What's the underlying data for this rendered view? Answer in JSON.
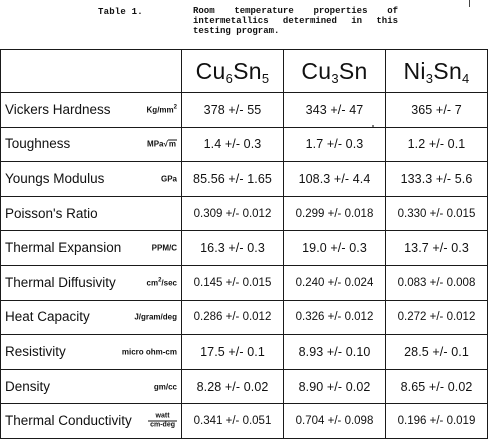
{
  "caption": {
    "label": "Table 1.",
    "text": "Room temperature properties of intermetallics determined in this testing program."
  },
  "columns": [
    {
      "base1": "Cu",
      "sub1": "6",
      "base2": "Sn",
      "sub2": "5"
    },
    {
      "base1": "Cu",
      "sub1": "3",
      "base2": "Sn",
      "sub2": ""
    },
    {
      "base1": "Ni",
      "sub1": "3",
      "base2": "Sn",
      "sub2": "4"
    }
  ],
  "rows": [
    {
      "property": "Vickers Hardness",
      "unit": "Kg/mm",
      "unit_sup": "2",
      "values": [
        "378 +/- 55",
        "343 +/- 47",
        "365 +/- 7"
      ]
    },
    {
      "property": "Toughness",
      "unit": "MPa",
      "unit_root": "m",
      "values": [
        "1.4 +/- 0.3",
        "1.7 +/- 0.3",
        "1.2 +/- 0.1"
      ]
    },
    {
      "property": "Youngs Modulus",
      "unit": "GPa",
      "values": [
        "85.56 +/- 1.65",
        "108.3 +/- 4.4",
        "133.3 +/- 5.6"
      ]
    },
    {
      "property": "Poisson's Ratio",
      "unit": "",
      "values": [
        "0.309 +/- 0.012",
        "0.299 +/- 0.018",
        "0.330 +/- 0.015"
      ]
    },
    {
      "property": "Thermal Expansion",
      "unit": "PPM/C",
      "values": [
        "16.3 +/- 0.3",
        "19.0 +/- 0.3",
        "13.7 +/- 0.3"
      ]
    },
    {
      "property": "Thermal Diffusivity",
      "unit": "cm",
      "unit_sup": "2",
      "unit_after": "/sec",
      "values": [
        "0.145 +/- 0.015",
        "0.240 +/- 0.024",
        "0.083 +/- 0.008"
      ]
    },
    {
      "property": "Heat Capacity",
      "unit": "J/gram/deg",
      "values": [
        "0.286 +/- 0.012",
        "0.326 +/- 0.012",
        "0.272 +/- 0.012"
      ]
    },
    {
      "property": "Resistivity",
      "unit": "micro ohm-cm",
      "values": [
        "17.5 +/- 0.1",
        "8.93 +/- 0.10",
        "28.5 +/- 0.1"
      ]
    },
    {
      "property": "Density",
      "unit": "gm/cc",
      "values": [
        "8.28 +/- 0.02",
        "8.90 +/- 0.02",
        "8.65 +/- 0.02"
      ]
    },
    {
      "property": "Thermal Conductivity",
      "unit_num": "watt",
      "unit_den": "cm-deg",
      "values": [
        "0.341 +/- 0.051",
        "0.704 +/- 0.098",
        "0.196 +/- 0.019"
      ]
    }
  ]
}
